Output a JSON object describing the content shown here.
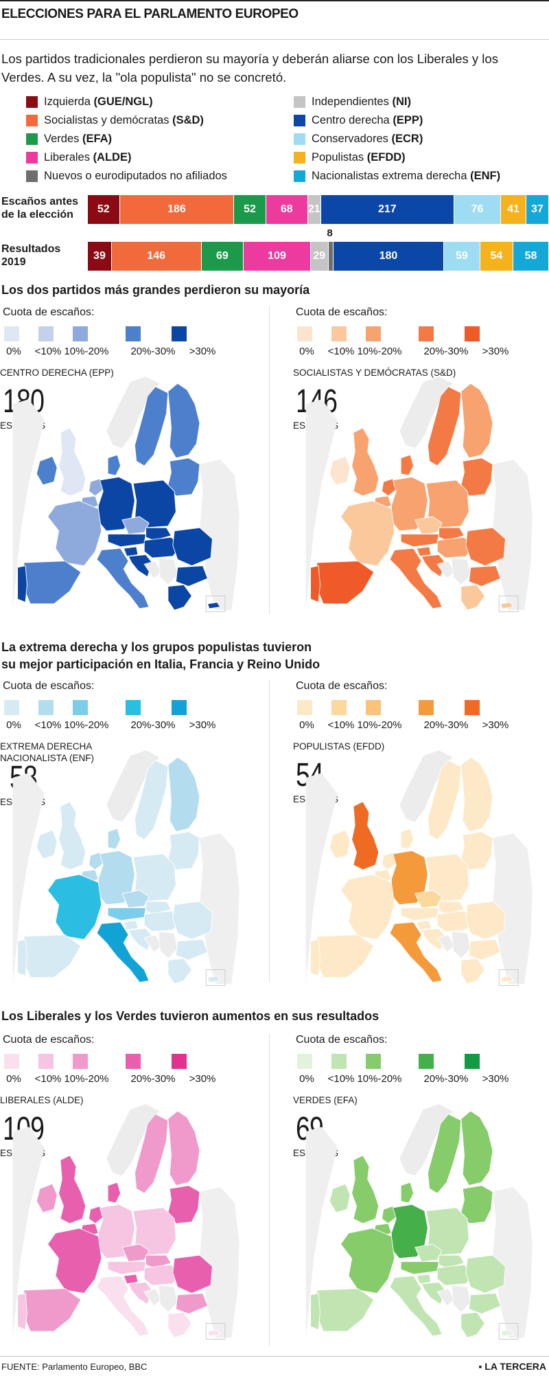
{
  "header": {
    "title": "ELECCIONES PARA EL PARLAMENTO EUROPEO"
  },
  "intro": "Los partidos tradicionales perdieron su mayoría y deberán aliarse con los Liberales y los Verdes. A su vez, la \"ola populista\" no se concretó.",
  "legend": {
    "left": [
      {
        "name": "Izquierda",
        "abbr": "(GUE/NGL)",
        "color": "#8b0a14"
      },
      {
        "name": "Socialistas y demócratas",
        "abbr": "(S&D)",
        "color": "#f26a3b"
      },
      {
        "name": "Verdes",
        "abbr": "(EFA)",
        "color": "#1a9a4a"
      },
      {
        "name": "Liberales",
        "abbr": "(ALDE)",
        "color": "#ec3a9e"
      },
      {
        "name": "Nuevos o eurodiputados no afiliados",
        "abbr": "",
        "color": "#6e6e6e"
      }
    ],
    "right": [
      {
        "name": "Independientes",
        "abbr": "(NI)",
        "color": "#c4c4c4"
      },
      {
        "name": "Centro derecha",
        "abbr": "(EPP)",
        "color": "#0a47a6"
      },
      {
        "name": "Conservadores",
        "abbr": "(ECR)",
        "color": "#9ddcf3"
      },
      {
        "name": "Populistas",
        "abbr": "(EFDD)",
        "color": "#f6b21c"
      },
      {
        "name": "Nacionalistas extrema derecha",
        "abbr": "(ENF)",
        "color": "#14a8d8"
      }
    ]
  },
  "chart_data": [
    {
      "type": "bar",
      "stacked": true,
      "categories": [
        "Escaños antes de la elección",
        "Resultados 2019"
      ],
      "series": [
        {
          "name": "Izquierda (GUE/NGL)",
          "color": "#8b0a14",
          "values": [
            52,
            39
          ]
        },
        {
          "name": "Socialistas y demócratas (S&D)",
          "color": "#f26a3b",
          "values": [
            186,
            146
          ]
        },
        {
          "name": "Verdes (EFA)",
          "color": "#1a9a4a",
          "values": [
            52,
            69
          ]
        },
        {
          "name": "Liberales (ALDE)",
          "color": "#ec3a9e",
          "values": [
            68,
            109
          ]
        },
        {
          "name": "Independientes (NI)",
          "color": "#c4c4c4",
          "values": [
            21,
            29
          ]
        },
        {
          "name": "Nuevos o eurodiputados no afiliados",
          "color": "#6e6e6e",
          "values": [
            0,
            8
          ]
        },
        {
          "name": "Centro derecha (EPP)",
          "color": "#0a47a6",
          "values": [
            217,
            180
          ]
        },
        {
          "name": "Conservadores (ECR)",
          "color": "#9ddcf3",
          "values": [
            76,
            59
          ]
        },
        {
          "name": "Populistas (EFDD)",
          "color": "#f6b21c",
          "values": [
            41,
            54
          ]
        },
        {
          "name": "Nacionalistas extrema derecha (ENF)",
          "color": "#14a8d8",
          "values": [
            37,
            58
          ]
        }
      ],
      "row_labels": [
        "Escaños antes",
        "de la elección",
        "Resultados",
        "2019"
      ]
    }
  ],
  "sections": [
    {
      "title_lines": [
        "Los dos partidos más grandes perdieron su mayoría"
      ]
    },
    {
      "title_lines": [
        "La extrema derecha y los grupos populistas tuvieron",
        "su mejor participación en Italia, Francia y Reino Unido"
      ]
    },
    {
      "title_lines": [
        "Los Liberales y los Verdes tuvieron aumentos en sus resultados"
      ]
    }
  ],
  "scale_labels": [
    "0%",
    "<10%",
    "10%-20%",
    "20%-30%",
    ">30%"
  ],
  "cuota_label": "Cuota de escaños:",
  "escanos_label": "ESCAÑOS",
  "panels": [
    {
      "name_lines": [
        "CENTRO DERECHA (EPP)"
      ],
      "seats": "180",
      "colors": [
        "#dfe6f4",
        "#c3d1ec",
        "#8ea9db",
        "#4c7fcc",
        "#0b46a4"
      ],
      "levels": {
        "ES": 3,
        "PT": 4,
        "FR": 2,
        "IE": 3,
        "UK": 0,
        "DE": 4,
        "PL": 4,
        "AT": 4,
        "CZ": 2,
        "SK": 4,
        "HU": 4,
        "RO": 4,
        "BG": 4,
        "GR": 4,
        "IT": 3,
        "SE": 3,
        "FI": 3,
        "NO": -1,
        "BL": 3,
        "BE": 2,
        "NL": 2,
        "DK": 3,
        "SI": 4,
        "HR": 4,
        "BA": -1,
        "RS": -1,
        "CY": 4
      }
    },
    {
      "name_lines": [
        "SOCIALISTAS Y DEMÓCRATAS (S&D)"
      ],
      "seats": "146",
      "colors": [
        "#fde4cf",
        "#fbc89c",
        "#f8a270",
        "#f47a45",
        "#f05a28"
      ],
      "levels": {
        "ES": 4,
        "PT": 4,
        "FR": 1,
        "IE": 0,
        "UK": 2,
        "DE": 2,
        "PL": 2,
        "AT": 3,
        "CZ": 1,
        "SK": 3,
        "HU": 2,
        "RO": 3,
        "BG": 3,
        "GR": 1,
        "IT": 3,
        "SE": 3,
        "FI": 2,
        "NO": -1,
        "BL": 3,
        "BE": 2,
        "NL": 3,
        "DK": 3,
        "SI": 3,
        "HR": 3,
        "BA": -1,
        "RS": -1,
        "CY": 1
      }
    },
    {
      "name_lines": [
        "EXTREMA DERECHA",
        "NACIONALISTA (ENF)"
      ],
      "seats": "58",
      "colors": [
        "#d6eaf3",
        "#b3dcef",
        "#7ccdea",
        "#2bbde2",
        "#12a3d6"
      ],
      "levels": {
        "ES": 0,
        "PT": 0,
        "FR": 3,
        "IE": 0,
        "UK": 0,
        "DE": 1,
        "PL": 0,
        "AT": 2,
        "CZ": 1,
        "SK": 0,
        "HU": 0,
        "RO": 0,
        "BG": 0,
        "GR": 0,
        "IT": 4,
        "SE": 0,
        "FI": 1,
        "NO": -1,
        "BL": 0,
        "BE": 1,
        "NL": 1,
        "DK": 1,
        "SI": 0,
        "HR": 0,
        "BA": -1,
        "RS": -1,
        "CY": 0
      }
    },
    {
      "name_lines": [
        "POPULISTAS (EFDD)"
      ],
      "seats": "54",
      "colors": [
        "#fde9c8",
        "#fbd89c",
        "#f9c37a",
        "#f59a3a",
        "#ef6a22"
      ],
      "levels": {
        "ES": 0,
        "PT": 0,
        "FR": 0,
        "IE": 0,
        "UK": 4,
        "DE": 3,
        "PL": 0,
        "AT": 0,
        "CZ": 1,
        "SK": 0,
        "HU": 0,
        "RO": 0,
        "BG": 0,
        "GR": 0,
        "IT": 3,
        "SE": 0,
        "FI": 0,
        "NO": -1,
        "BL": 0,
        "BE": 0,
        "NL": 0,
        "DK": 0,
        "SI": 0,
        "HR": 0,
        "BA": -1,
        "RS": -1,
        "CY": 0
      }
    },
    {
      "name_lines": [
        "LIBERALES (ALDE)"
      ],
      "seats": "109",
      "colors": [
        "#fae0ef",
        "#f6c5e1",
        "#f09acb",
        "#e85fae",
        "#e0338f"
      ],
      "levels": {
        "ES": 2,
        "PT": 1,
        "FR": 3,
        "IE": 2,
        "UK": 3,
        "DE": 1,
        "PL": 1,
        "AT": 1,
        "CZ": 2,
        "SK": 2,
        "HU": 1,
        "RO": 3,
        "BG": 2,
        "GR": 0,
        "IT": 0,
        "SE": 2,
        "FI": 2,
        "NO": -1,
        "BL": 3,
        "BE": 3,
        "NL": 3,
        "DK": 3,
        "SI": 3,
        "HR": 1,
        "BA": -1,
        "RS": -1,
        "CY": 0
      }
    },
    {
      "name_lines": [
        "VERDES (EFA)"
      ],
      "seats": "69",
      "colors": [
        "#e2f2dc",
        "#c0e5b2",
        "#86cc6a",
        "#45b04a",
        "#139a43"
      ],
      "levels": {
        "ES": 1,
        "PT": 1,
        "FR": 2,
        "IE": 1,
        "UK": 2,
        "DE": 3,
        "PL": 1,
        "AT": 2,
        "CZ": 1,
        "SK": 1,
        "HU": 1,
        "RO": 1,
        "BG": 1,
        "GR": 1,
        "IT": 1,
        "SE": 2,
        "FI": 2,
        "NO": -1,
        "BL": 2,
        "BE": 2,
        "NL": 2,
        "DK": 2,
        "SI": 1,
        "HR": 1,
        "BA": -1,
        "RS": -1,
        "CY": 0
      }
    }
  ],
  "footer": {
    "source": "FUENTE: Parlamento Europeo, BBC",
    "brand": "LA TERCERA"
  }
}
